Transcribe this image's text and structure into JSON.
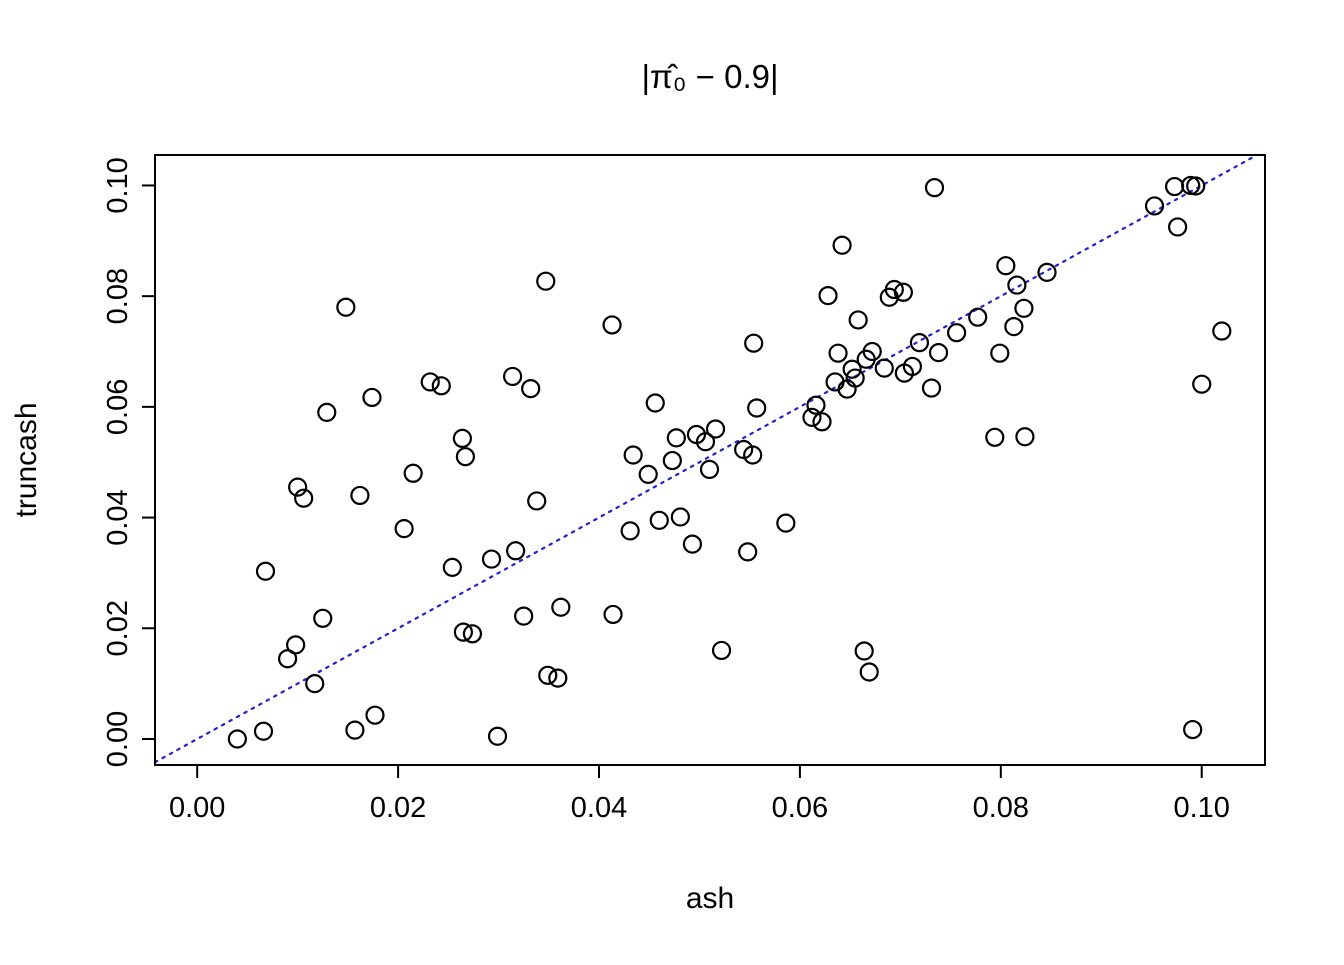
{
  "title": "|π̂₀ − 0.9|",
  "chart_data": {
    "type": "scatter",
    "title": "|π̂₀ − 0.9|",
    "xlabel": "ash",
    "ylabel": "truncash",
    "xlim": [
      -0.0042,
      0.1063
    ],
    "ylim": [
      -0.0047,
      0.1055
    ],
    "grid": false,
    "legend": "none",
    "xticks": [
      0.0,
      0.02,
      0.04,
      0.06,
      0.08,
      0.1
    ],
    "yticks": [
      0.0,
      0.02,
      0.04,
      0.06,
      0.08,
      0.1
    ],
    "xtick_labels": [
      "0.00",
      "0.02",
      "0.04",
      "0.06",
      "0.08",
      "0.10"
    ],
    "ytick_labels": [
      "0.00",
      "0.02",
      "0.04",
      "0.06",
      "0.08",
      "0.10"
    ],
    "reference_line": {
      "type": "y=x",
      "style": "dotted",
      "color": "#2222cc"
    },
    "marker": {
      "shape": "open-circle",
      "color": "#000000"
    },
    "points": [
      [
        0.004,
        0.0
      ],
      [
        0.0066,
        0.0014
      ],
      [
        0.0068,
        0.0303
      ],
      [
        0.009,
        0.0145
      ],
      [
        0.0098,
        0.017
      ],
      [
        0.01,
        0.0455
      ],
      [
        0.0106,
        0.0435
      ],
      [
        0.0117,
        0.01
      ],
      [
        0.0125,
        0.0218
      ],
      [
        0.0129,
        0.059
      ],
      [
        0.0148,
        0.078
      ],
      [
        0.0157,
        0.0016
      ],
      [
        0.0162,
        0.044
      ],
      [
        0.0174,
        0.0617
      ],
      [
        0.0177,
        0.0043
      ],
      [
        0.0206,
        0.038
      ],
      [
        0.0215,
        0.048
      ],
      [
        0.0232,
        0.0645
      ],
      [
        0.0243,
        0.0638
      ],
      [
        0.0254,
        0.031
      ],
      [
        0.0264,
        0.0543
      ],
      [
        0.0267,
        0.051
      ],
      [
        0.0265,
        0.0193
      ],
      [
        0.0274,
        0.019
      ],
      [
        0.0293,
        0.0325
      ],
      [
        0.0299,
        0.0005
      ],
      [
        0.0314,
        0.0655
      ],
      [
        0.0317,
        0.034
      ],
      [
        0.0325,
        0.0222
      ],
      [
        0.0332,
        0.0633
      ],
      [
        0.0338,
        0.043
      ],
      [
        0.0347,
        0.0827
      ],
      [
        0.0349,
        0.0115
      ],
      [
        0.0359,
        0.011
      ],
      [
        0.0362,
        0.0238
      ],
      [
        0.0413,
        0.0748
      ],
      [
        0.0414,
        0.0225
      ],
      [
        0.0431,
        0.0376
      ],
      [
        0.0434,
        0.0513
      ],
      [
        0.0449,
        0.0478
      ],
      [
        0.0456,
        0.0607
      ],
      [
        0.046,
        0.0395
      ],
      [
        0.0473,
        0.0503
      ],
      [
        0.0477,
        0.0544
      ],
      [
        0.0481,
        0.0401
      ],
      [
        0.0493,
        0.0352
      ],
      [
        0.0497,
        0.055
      ],
      [
        0.0506,
        0.0537
      ],
      [
        0.051,
        0.0487
      ],
      [
        0.0516,
        0.056
      ],
      [
        0.0522,
        0.016
      ],
      [
        0.0544,
        0.0523
      ],
      [
        0.0548,
        0.0338
      ],
      [
        0.0553,
        0.0513
      ],
      [
        0.0554,
        0.0715
      ],
      [
        0.0557,
        0.0598
      ],
      [
        0.0586,
        0.039
      ],
      [
        0.0612,
        0.0581
      ],
      [
        0.0616,
        0.0603
      ],
      [
        0.0622,
        0.0573
      ],
      [
        0.0628,
        0.0801
      ],
      [
        0.0635,
        0.0645
      ],
      [
        0.0638,
        0.0697
      ],
      [
        0.0642,
        0.0892
      ],
      [
        0.0647,
        0.0632
      ],
      [
        0.0652,
        0.0668
      ],
      [
        0.0655,
        0.0652
      ],
      [
        0.0658,
        0.0757
      ],
      [
        0.0664,
        0.0159
      ],
      [
        0.0666,
        0.0686
      ],
      [
        0.0669,
        0.0121
      ],
      [
        0.0672,
        0.07
      ],
      [
        0.0684,
        0.067
      ],
      [
        0.0689,
        0.0798
      ],
      [
        0.0694,
        0.0812
      ],
      [
        0.0703,
        0.0807
      ],
      [
        0.0704,
        0.0661
      ],
      [
        0.0712,
        0.0673
      ],
      [
        0.0719,
        0.0716
      ],
      [
        0.0731,
        0.0634
      ],
      [
        0.0734,
        0.0996
      ],
      [
        0.0738,
        0.0698
      ],
      [
        0.0756,
        0.0734
      ],
      [
        0.0777,
        0.0762
      ],
      [
        0.0794,
        0.0545
      ],
      [
        0.0799,
        0.0697
      ],
      [
        0.0805,
        0.0855
      ],
      [
        0.0813,
        0.0745
      ],
      [
        0.0816,
        0.082
      ],
      [
        0.0823,
        0.0778
      ],
      [
        0.0824,
        0.0546
      ],
      [
        0.0846,
        0.0843
      ],
      [
        0.0953,
        0.0963
      ],
      [
        0.0973,
        0.0998
      ],
      [
        0.0976,
        0.0925
      ],
      [
        0.0989,
        0.1
      ],
      [
        0.0994,
        0.0999
      ],
      [
        0.0991,
        0.0017
      ],
      [
        0.1,
        0.0641
      ],
      [
        0.102,
        0.0737
      ]
    ]
  }
}
